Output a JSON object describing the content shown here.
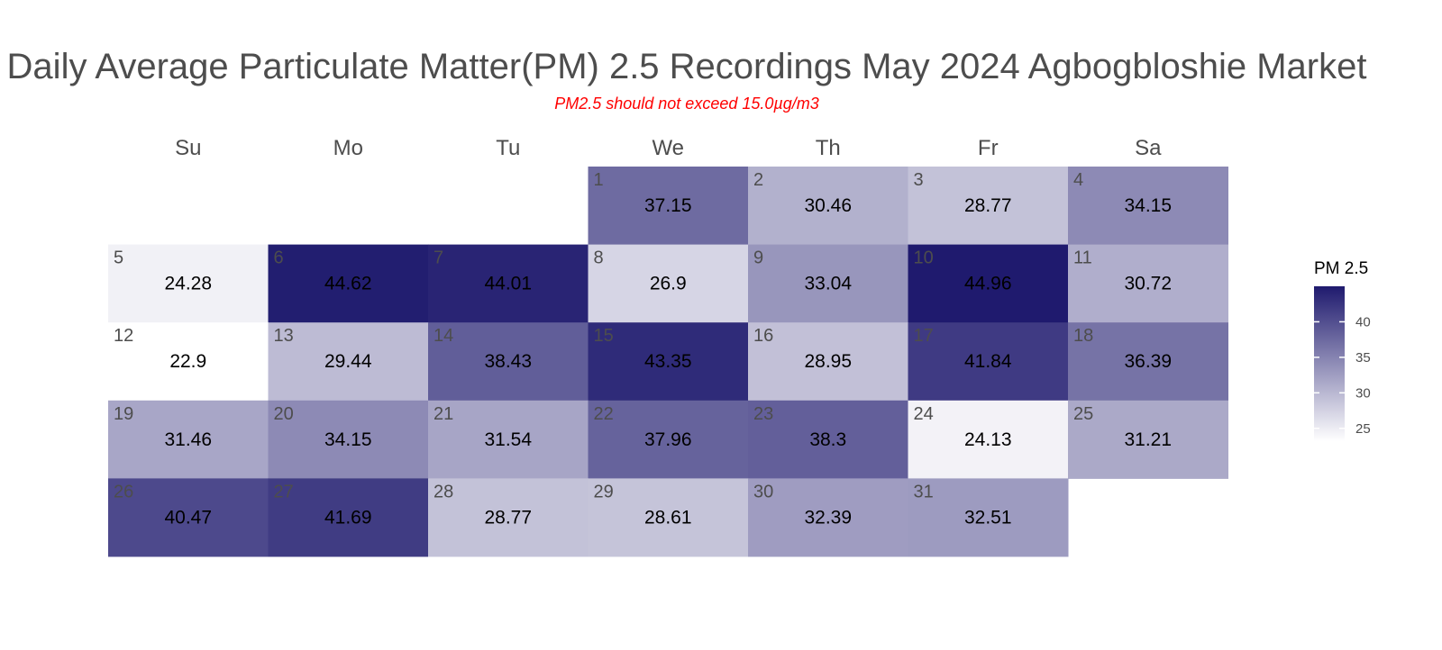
{
  "chart_data": {
    "type": "heatmap",
    "title": "Daily Average Particulate Matter(PM) 2.5 Recordings May 2024 Agbogbloshie Market",
    "subtitle": "PM2.5 should not exceed 15.0µg/m3",
    "weekdays": [
      "Su",
      "Mo",
      "Tu",
      "We",
      "Th",
      "Fr",
      "Sa"
    ],
    "first_weekday_index": 3,
    "days": [
      1,
      2,
      3,
      4,
      5,
      6,
      7,
      8,
      9,
      10,
      11,
      12,
      13,
      14,
      15,
      16,
      17,
      18,
      19,
      20,
      21,
      22,
      23,
      24,
      25,
      26,
      27,
      28,
      29,
      30,
      31
    ],
    "values": [
      37.15,
      30.46,
      28.77,
      34.15,
      24.28,
      44.62,
      44.01,
      26.9,
      33.04,
      44.96,
      30.72,
      22.9,
      29.44,
      38.43,
      43.35,
      28.95,
      41.84,
      36.39,
      31.46,
      34.15,
      31.54,
      37.96,
      38.3,
      24.13,
      31.21,
      40.47,
      41.69,
      28.77,
      28.61,
      32.39,
      32.51
    ],
    "value_labels": [
      "37.15",
      "30.46",
      "28.77",
      "34.15",
      "24.28",
      "44.62",
      "44.01",
      "26.9",
      "33.04",
      "44.96",
      "30.72",
      "22.9",
      "29.44",
      "38.43",
      "43.35",
      "28.95",
      "41.84",
      "36.39",
      "31.46",
      "34.15",
      "31.54",
      "37.96",
      "38.3",
      "24.13",
      "31.21",
      "40.47",
      "41.69",
      "28.77",
      "28.61",
      "32.39",
      "32.51"
    ],
    "color_scale": {
      "low_value": 22.9,
      "high_value": 44.96,
      "low_color": "#ffffff",
      "high_color": "#1f1a6e"
    },
    "legend": {
      "title": "PM 2.5",
      "ticks": [
        25,
        30,
        35,
        40
      ],
      "placement": "right"
    }
  }
}
